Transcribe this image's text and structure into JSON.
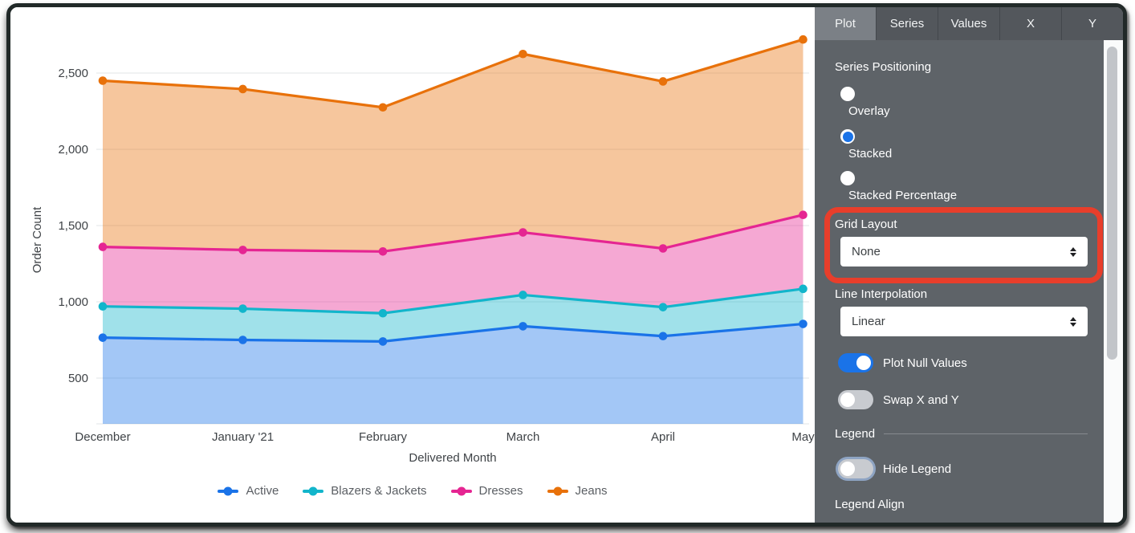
{
  "chart_data": {
    "type": "area",
    "stacked": true,
    "title": "",
    "xlabel": "Delivered Month",
    "ylabel": "Order Count",
    "categories": [
      "December",
      "January '21",
      "February",
      "March",
      "April",
      "May"
    ],
    "series": [
      {
        "name": "Active",
        "color": "#1A73E8",
        "values": [
          765,
          750,
          740,
          840,
          775,
          855
        ]
      },
      {
        "name": "Blazers & Jackets",
        "color": "#12B5CB",
        "values": [
          205,
          205,
          185,
          205,
          190,
          230
        ]
      },
      {
        "name": "Dresses",
        "color": "#E52592",
        "values": [
          390,
          385,
          405,
          410,
          385,
          485
        ]
      },
      {
        "name": "Jeans",
        "color": "#E8710A",
        "values": [
          1090,
          1055,
          945,
          1170,
          1095,
          1150
        ]
      }
    ],
    "stacked_totals": [
      2450,
      2395,
      2275,
      2625,
      2445,
      2720
    ],
    "y_ticks": [
      500,
      1000,
      1500,
      2000,
      2500
    ],
    "ylim": [
      170,
      2730
    ],
    "grid": "horizontal",
    "legend_position": "bottom-center",
    "area_fill_opacity": 0.4
  },
  "panel": {
    "tabs": [
      {
        "label": "Plot",
        "active": true
      },
      {
        "label": "Series",
        "active": false
      },
      {
        "label": "Values",
        "active": false
      },
      {
        "label": "X",
        "active": false
      },
      {
        "label": "Y",
        "active": false
      }
    ],
    "series_positioning": {
      "label": "Series Positioning",
      "options": [
        {
          "label": "Overlay",
          "selected": false
        },
        {
          "label": "Stacked",
          "selected": true
        },
        {
          "label": "Stacked Percentage",
          "selected": false
        }
      ]
    },
    "grid_layout": {
      "label": "Grid Layout",
      "value": "None",
      "highlighted": true
    },
    "line_interpolation": {
      "label": "Line Interpolation",
      "value": "Linear"
    },
    "plot_null_values": {
      "label": "Plot Null Values",
      "on": true
    },
    "swap_x_y": {
      "label": "Swap X and Y",
      "on": false
    },
    "legend_section": {
      "label": "Legend"
    },
    "hide_legend": {
      "label": "Hide Legend",
      "on": false
    },
    "legend_align_label": "Legend Align",
    "highlight_color": "#E83E2B"
  }
}
